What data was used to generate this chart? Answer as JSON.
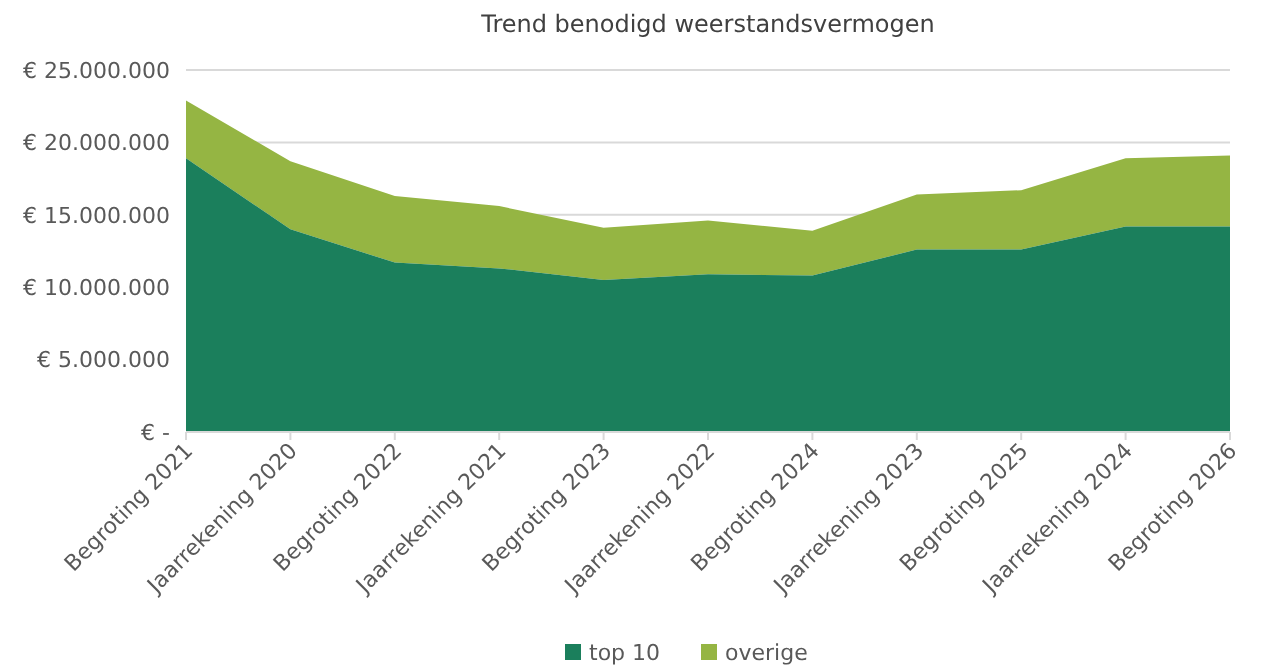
{
  "chart_data": {
    "type": "area",
    "stacked": true,
    "title": "Trend benodigd weerstandsvermogen",
    "categories": [
      "Begroting 2021",
      "Jaarrekening 2020",
      "Begroting 2022",
      "Jaarrekening 2021",
      "Begroting 2023",
      "Jaarrekening 2022",
      "Begroting 2024",
      "Jaarrekening 2023",
      "Begroting 2025",
      "Jaarrekening 2024",
      "Begroting 2026"
    ],
    "series": [
      {
        "name": "top 10",
        "color": "#1b7f5c",
        "values": [
          18900000,
          14000000,
          11700000,
          11300000,
          10500000,
          10900000,
          10800000,
          12600000,
          12600000,
          14200000,
          14200000
        ]
      },
      {
        "name": "overige",
        "color": "#95b543",
        "values": [
          4000000,
          4700000,
          4600000,
          4300000,
          3600000,
          3700000,
          3100000,
          3800000,
          4100000,
          4700000,
          4900000
        ]
      }
    ],
    "ylim": [
      0,
      25000000
    ],
    "yticks": [
      {
        "value": 0,
        "label": "€ -"
      },
      {
        "value": 5000000,
        "label": "€ 5.000.000"
      },
      {
        "value": 10000000,
        "label": "€ 10.000.000"
      },
      {
        "value": 15000000,
        "label": "€ 15.000.000"
      },
      {
        "value": 20000000,
        "label": "€ 20.000.000"
      },
      {
        "value": 25000000,
        "label": "€ 25.000.000"
      }
    ],
    "grid": "y",
    "legend": "bottom"
  }
}
